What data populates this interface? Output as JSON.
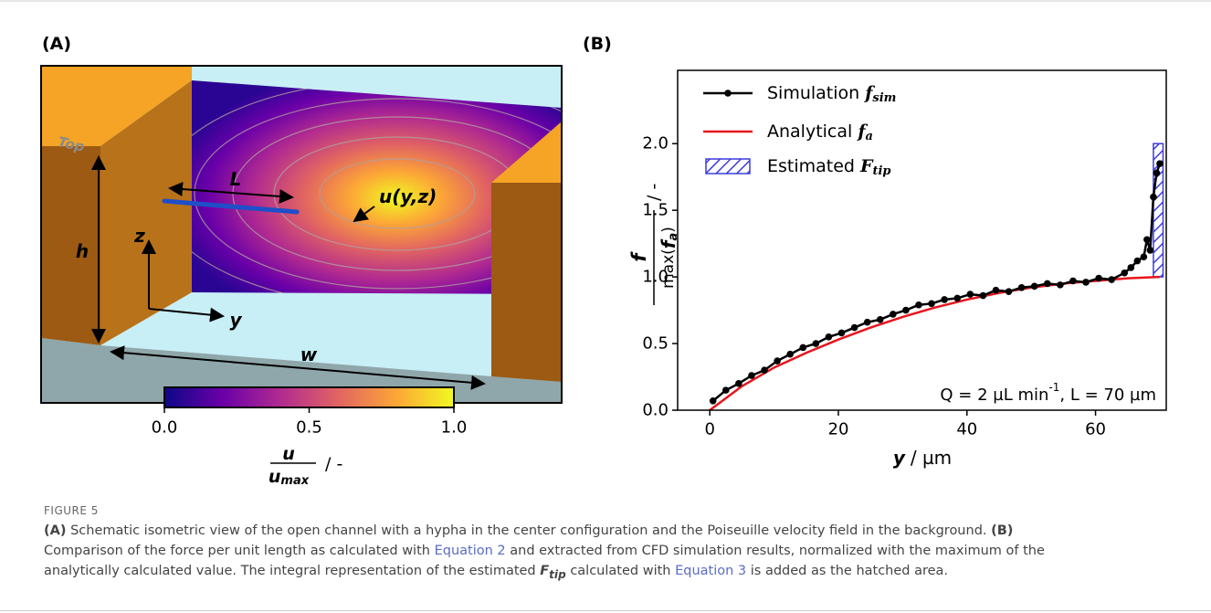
{
  "panel_a": {
    "title": "(A)",
    "top": "Top",
    "L": "L",
    "u": "u(y,z)",
    "z": "z",
    "y": "y",
    "h": "h",
    "w": "w",
    "colorbar": {
      "lim": [
        0,
        1
      ],
      "ticks": [
        {
          "value": 0,
          "label": "0.0"
        },
        0.5,
        {
          "value": 1,
          "label": "1.0"
        }
      ],
      "label_num": "u",
      "label_den": "u",
      "label_den_sub": "max",
      "label_rest": "/ -"
    }
  },
  "chart_data": {
    "type": "line",
    "title": "(B)",
    "x_label": {
      "var": "y",
      "rest": "/ µm"
    },
    "y_label": {
      "num": "f",
      "den_pre": "max(",
      "den_var": "f",
      "den_sub": "a",
      "den_post": ")",
      "rest": "/ -"
    },
    "xlim": [
      -5,
      71
    ],
    "xticks": [
      0,
      20,
      40,
      60
    ],
    "ylim": [
      0,
      2.55
    ],
    "yticks": [
      {
        "value": 0,
        "label": "0.0"
      },
      0.5,
      {
        "value": 1,
        "label": "1.0"
      },
      1.5,
      {
        "value": 2,
        "label": "2.0"
      }
    ],
    "series": [
      {
        "name": "Simulation",
        "name_var": "f",
        "name_sub": "sim",
        "color": "#000000",
        "markers": true,
        "x": [
          0.5,
          2.5,
          4.5,
          6.5,
          8.5,
          10.5,
          12.5,
          14.5,
          16.5,
          18.5,
          20.5,
          22.5,
          24.5,
          26.5,
          28.5,
          30.5,
          32.5,
          34.5,
          36.5,
          38.5,
          40.5,
          42.5,
          44.5,
          46.5,
          48.5,
          50.5,
          52.5,
          54.5,
          56.5,
          58.5,
          60.5,
          62.5,
          64.5,
          65.5,
          66.5,
          67.5,
          68,
          68.5,
          69,
          69.5,
          70
        ],
        "values": [
          0.07,
          0.15,
          0.2,
          0.26,
          0.3,
          0.37,
          0.42,
          0.47,
          0.5,
          0.55,
          0.58,
          0.62,
          0.66,
          0.68,
          0.72,
          0.75,
          0.79,
          0.8,
          0.83,
          0.84,
          0.87,
          0.86,
          0.9,
          0.89,
          0.92,
          0.93,
          0.95,
          0.94,
          0.97,
          0.96,
          0.99,
          0.98,
          1.03,
          1.07,
          1.12,
          1.15,
          1.28,
          1.2,
          1.6,
          1.78,
          1.85
        ]
      },
      {
        "name": "Analytical",
        "name_var": "f",
        "name_sub": "a",
        "color": "#e8141c",
        "markers": false,
        "x": [
          0,
          5,
          10,
          15,
          20,
          25,
          30,
          35,
          40,
          45,
          50,
          55,
          60,
          65,
          70
        ],
        "values": [
          0,
          0.18,
          0.32,
          0.43,
          0.53,
          0.62,
          0.7,
          0.77,
          0.83,
          0.88,
          0.92,
          0.95,
          0.97,
          0.99,
          1.0
        ]
      }
    ],
    "tip_area": {
      "name": "Estimated",
      "name_var": "F",
      "name_sub": "tip",
      "color": "#3c3cdc",
      "x": [
        69,
        70.5
      ],
      "values": [
        1.0,
        2.0
      ]
    },
    "annotation": {
      "pre": "Q = 2 µL min",
      "sup": "-1",
      "post": ", L = 70 µm"
    }
  },
  "caption": {
    "figure": "FIGURE 5",
    "lines": [
      [
        "(A)",
        " Schematic isometric view of the open channel with a hypha in the center configuration and the Poiseuille velocity field in the background. ",
        "(B)"
      ],
      [
        "Comparison of the force per unit length as calculated with ",
        "Equation 2",
        " and extracted from CFD simulation results, normalized with the maximum of the"
      ],
      [
        "analytically calculated value. The integral representation of the estimated ",
        "F",
        "tip",
        " calculated with ",
        "Equation 3",
        " is added as the hatched area."
      ]
    ]
  }
}
